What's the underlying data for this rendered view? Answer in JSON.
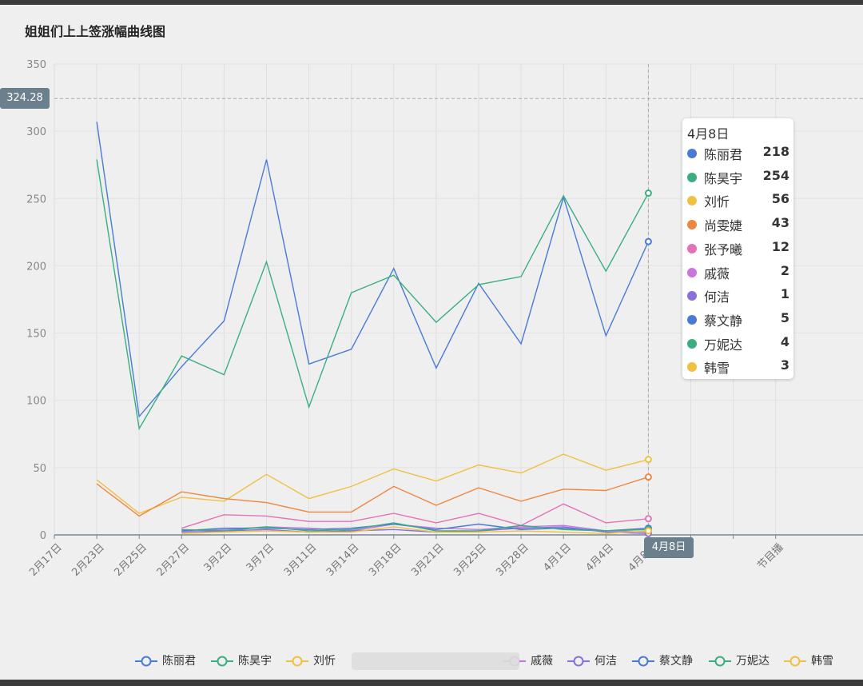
{
  "title": "姐姐们上上签涨幅曲线图",
  "crosshair": {
    "y_label": "324.28",
    "x_label": "4月8日"
  },
  "tooltip": {
    "date": "4月8日",
    "rows": [
      {
        "name": "陈丽君",
        "value": "218",
        "color": "#4a7bd4"
      },
      {
        "name": "陈昊宇",
        "value": "254",
        "color": "#3aae80"
      },
      {
        "name": "刘忻",
        "value": "56",
        "color": "#f0c040"
      },
      {
        "name": "尚雯婕",
        "value": "43",
        "color": "#ef8640"
      },
      {
        "name": "张予曦",
        "value": "12",
        "color": "#e372b8"
      },
      {
        "name": "戚薇",
        "value": "2",
        "color": "#c875e0"
      },
      {
        "name": "何洁",
        "value": "1",
        "color": "#8a70d8"
      },
      {
        "name": "蔡文静",
        "value": "5",
        "color": "#4a7bd4"
      },
      {
        "name": "万妮达",
        "value": "4",
        "color": "#3aae80"
      },
      {
        "name": "韩雪",
        "value": "3",
        "color": "#f0c040"
      }
    ]
  },
  "legend": [
    {
      "name": "陈丽君",
      "color": "#4a7bd4"
    },
    {
      "name": "陈昊宇",
      "color": "#3aae80"
    },
    {
      "name": "刘忻",
      "color": "#f0c040"
    },
    {
      "name": "戚薇",
      "color": "#c875e0"
    },
    {
      "name": "何洁",
      "color": "#8a70d8"
    },
    {
      "name": "蔡文静",
      "color": "#4a7bd4"
    },
    {
      "name": "万妮达",
      "color": "#3aae80"
    },
    {
      "name": "韩雪",
      "color": "#f0c040"
    }
  ],
  "chart_data": {
    "type": "line",
    "title": "姐姐们上上签涨幅曲线图",
    "ylim": [
      0,
      350
    ],
    "yticks": [
      0,
      50,
      100,
      150,
      200,
      250,
      300,
      350
    ],
    "grid": true,
    "legend_position": "bottom",
    "categories": [
      "2月17日",
      "2月23日",
      "2月25日",
      "2月27日",
      "3月2日",
      "3月7日",
      "3月11日",
      "3月14日",
      "3月18日",
      "3月21日",
      "3月25日",
      "3月28日",
      "4月1日",
      "4月4日",
      "4月8日",
      "",
      "",
      "节目播"
    ],
    "x": [
      "2月23日",
      "2月25日",
      "2月27日",
      "3月2日",
      "3月7日",
      "3月11日",
      "3月14日",
      "3月18日",
      "3月21日",
      "3月25日",
      "3月28日",
      "4月1日",
      "4月4日",
      "4月8日"
    ],
    "series": [
      {
        "name": "陈丽君",
        "color": "#4a7bd4",
        "values": [
          307,
          88,
          125,
          159,
          279,
          127,
          138,
          198,
          124,
          187,
          142,
          251,
          148,
          218
        ]
      },
      {
        "name": "陈昊宇",
        "color": "#3aae80",
        "values": [
          279,
          79,
          133,
          119,
          203,
          95,
          180,
          193,
          158,
          186,
          192,
          252,
          196,
          254
        ]
      },
      {
        "name": "刘忻",
        "color": "#f0c040",
        "values": [
          41,
          16,
          28,
          25,
          45,
          27,
          36,
          49,
          40,
          52,
          46,
          60,
          48,
          56
        ]
      },
      {
        "name": "尚雯婕",
        "color": "#ef8640",
        "values": [
          38,
          14,
          32,
          27,
          24,
          17,
          17,
          36,
          22,
          35,
          25,
          34,
          33,
          43
        ]
      },
      {
        "name": "张予曦",
        "color": "#e372b8",
        "values": [
          null,
          null,
          5,
          15,
          14,
          10,
          10,
          16,
          9,
          16,
          7,
          23,
          9,
          12
        ]
      },
      {
        "name": "戚薇",
        "color": "#c875e0",
        "values": [
          null,
          null,
          3,
          4,
          6,
          5,
          3,
          8,
          5,
          4,
          6,
          7,
          3,
          2
        ]
      },
      {
        "name": "何洁",
        "color": "#8a70d8",
        "values": [
          null,
          null,
          2,
          3,
          4,
          2,
          3,
          4,
          2,
          3,
          5,
          6,
          2,
          1
        ]
      },
      {
        "name": "蔡文静",
        "color": "#4a7bd4",
        "values": [
          null,
          null,
          3,
          5,
          5,
          4,
          5,
          8,
          4,
          8,
          4,
          5,
          3,
          5
        ]
      },
      {
        "name": "万妮达",
        "color": "#3aae80",
        "values": [
          null,
          null,
          4,
          3,
          6,
          3,
          4,
          9,
          3,
          3,
          7,
          4,
          3,
          4
        ]
      },
      {
        "name": "韩雪",
        "color": "#f0c040",
        "values": [
          null,
          null,
          1,
          2,
          3,
          2,
          2,
          6,
          2,
          2,
          3,
          2,
          1,
          3
        ]
      }
    ]
  }
}
